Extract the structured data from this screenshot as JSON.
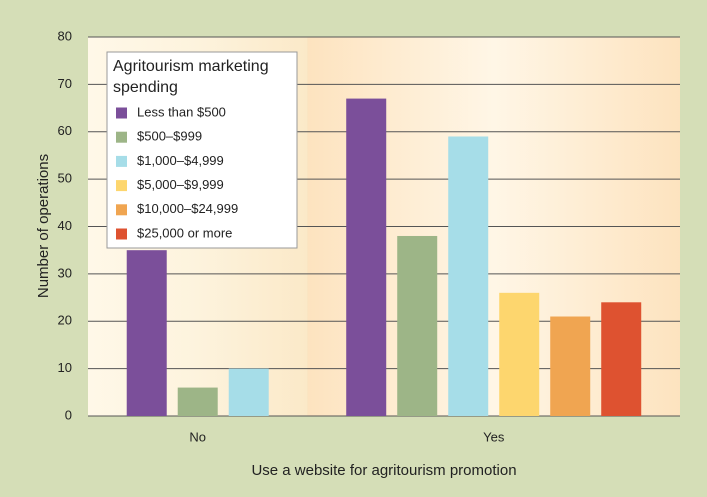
{
  "chart_data": {
    "type": "bar",
    "x_label": "Use a website for agritourism promotion",
    "y_label": "Number of operations",
    "legend_title": "Agritourism marketing spending",
    "categories": [
      "No",
      "Yes"
    ],
    "series": [
      {
        "name": "Less than $500",
        "color": "#7b4f9a",
        "values": [
          35,
          67
        ]
      },
      {
        "name": "$500–$999",
        "color": "#9db587",
        "values": [
          6,
          38
        ]
      },
      {
        "name": "$1,000–$4,999",
        "color": "#a6dde8",
        "values": [
          10,
          59
        ]
      },
      {
        "name": "$5,000–$9,999",
        "color": "#fdd66e",
        "values": [
          null,
          26
        ]
      },
      {
        "name": "$10,000–$24,999",
        "color": "#f0a551",
        "values": [
          null,
          21
        ]
      },
      {
        "name": "$25,000 or more",
        "color": "#de5230",
        "values": [
          null,
          24
        ]
      }
    ],
    "ylim": [
      0,
      80
    ],
    "yticks": [
      0,
      10,
      20,
      30,
      40,
      50,
      60,
      70,
      80
    ],
    "grid": true,
    "legend": "upper left"
  }
}
